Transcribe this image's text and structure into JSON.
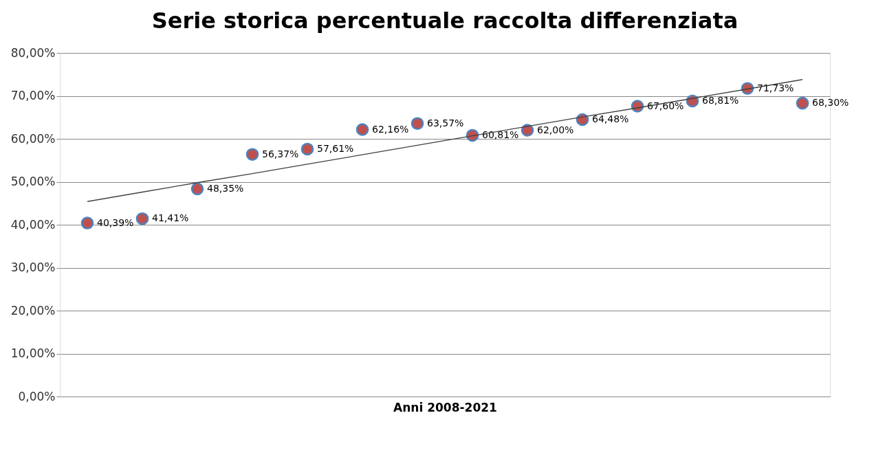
{
  "chart_data": {
    "type": "scatter",
    "title": "Serie storica percentuale raccolta differenziata",
    "xlabel": "Anni 2008-2021",
    "categories": [
      null,
      null,
      null,
      null,
      null,
      null,
      null,
      null,
      null,
      null,
      null,
      null,
      null,
      null
    ],
    "ylim": [
      0,
      80
    ],
    "yticks": [
      {
        "value": 0,
        "label": "0,00%"
      },
      {
        "value": 10,
        "label": "10,00%"
      },
      {
        "value": 20,
        "label": "20,00%"
      },
      {
        "value": 30,
        "label": "30,00%"
      },
      {
        "value": 40,
        "label": "40,00%"
      },
      {
        "value": 50,
        "label": "50,00%"
      },
      {
        "value": 60,
        "label": "60,00%"
      },
      {
        "value": 70,
        "label": "70,00%"
      },
      {
        "value": 80,
        "label": "80,00%"
      }
    ],
    "grid": "y",
    "legend": false,
    "marker": "circle",
    "series": [
      {
        "color": "#c0504d",
        "values": [
          40.39,
          41.41,
          48.35,
          56.37,
          57.61,
          62.16,
          63.57,
          60.81,
          62.0,
          64.48,
          67.6,
          68.81,
          71.73,
          68.3
        ],
        "value_labels": [
          "40,39%",
          "41,41%",
          "48,35%",
          "56,37%",
          "57,61%",
          "62,16%",
          "63,57%",
          "60,81%",
          "62,00%",
          "64,48%",
          "67,60%",
          "68,81%",
          "71,73%",
          "68,30%"
        ]
      },
      {
        "type": "line",
        "marker": "none",
        "color": "#404040",
        "values": [
          45.4,
          47.6,
          49.8,
          51.9,
          54.1,
          56.3,
          58.5,
          60.7,
          62.9,
          65.1,
          67.2,
          69.4,
          71.6,
          73.8
        ]
      }
    ]
  }
}
